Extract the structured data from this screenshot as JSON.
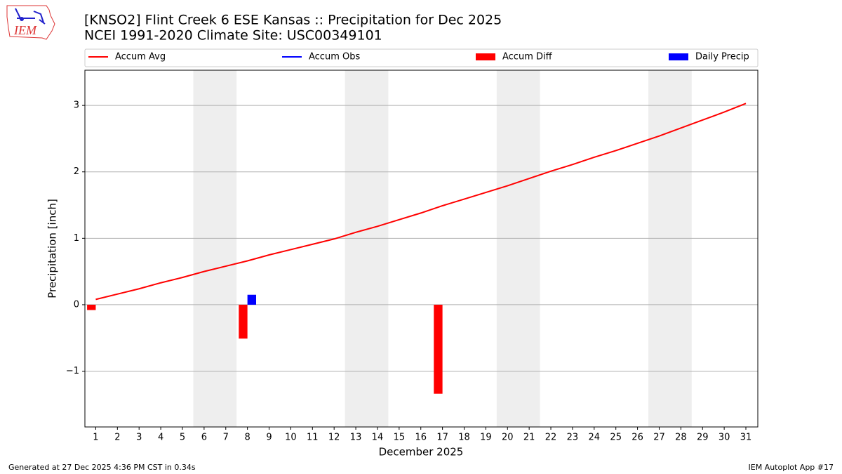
{
  "chart_data": {
    "type": "line_bar",
    "title": "[KNSO2] Flint Creek 6 ESE Kansas :: Precipitation for Dec 2025",
    "subtitle": "NCEI 1991-2020 Climate Site: USC00349101",
    "logo_text": "IEM",
    "x_label": "December 2025",
    "y_label": "Precipitation [inch]",
    "footer_left": "Generated at 27 Dec 2025 4:36 PM CST in 0.34s",
    "footer_right": "IEM Autoplot App #17",
    "x": [
      1,
      2,
      3,
      4,
      5,
      6,
      7,
      8,
      9,
      10,
      11,
      12,
      13,
      14,
      15,
      16,
      17,
      18,
      19,
      20,
      21,
      22,
      23,
      24,
      25,
      26,
      27,
      28,
      29,
      30,
      31
    ],
    "xlim": [
      0.5,
      31.55
    ],
    "xticks": [
      1,
      2,
      3,
      4,
      5,
      6,
      7,
      8,
      9,
      10,
      11,
      12,
      13,
      14,
      15,
      16,
      17,
      18,
      19,
      20,
      21,
      22,
      23,
      24,
      25,
      26,
      27,
      28,
      29,
      30,
      31
    ],
    "ylim": [
      -1.84,
      3.53
    ],
    "yticks": [
      {
        "value": -1,
        "label": "−1"
      },
      0,
      1,
      2,
      3
    ],
    "grid": true,
    "weekend_shading": [
      [
        5.5,
        7.5
      ],
      [
        12.5,
        14.5
      ],
      [
        19.5,
        21.5
      ],
      [
        26.5,
        28.5
      ]
    ],
    "series": [
      {
        "name": "Accum Avg",
        "color": "#ff0000",
        "kind": "line",
        "values": [
          0.08,
          0.16,
          0.24,
          0.33,
          0.41,
          0.5,
          0.58,
          0.66,
          0.75,
          0.83,
          0.91,
          0.99,
          1.09,
          1.18,
          1.28,
          1.38,
          1.49,
          1.59,
          1.69,
          1.79,
          1.9,
          2.01,
          2.11,
          2.22,
          2.32,
          2.43,
          2.54,
          2.66,
          2.78,
          2.9,
          3.03
        ]
      },
      {
        "name": "Accum Obs",
        "color": "#0000ff",
        "kind": "line",
        "values": [
          null,
          null,
          null,
          null,
          null,
          null,
          null,
          null,
          null,
          null,
          null,
          null,
          null,
          null,
          null,
          null,
          null,
          null,
          null,
          null,
          null,
          null,
          null,
          null,
          null,
          null,
          null,
          null,
          null,
          null,
          null
        ]
      },
      {
        "name": "Accum Diff",
        "color": "#ff0000",
        "kind": "bar",
        "offset": -0.2,
        "values": [
          -0.08,
          null,
          null,
          null,
          null,
          null,
          null,
          -0.51,
          null,
          null,
          null,
          null,
          null,
          null,
          null,
          null,
          -1.34,
          null,
          null,
          null,
          null,
          null,
          null,
          null,
          null,
          null,
          null,
          null,
          null,
          null,
          null
        ]
      },
      {
        "name": "Daily Precip",
        "color": "#0000ff",
        "kind": "bar",
        "offset": 0.2,
        "values": [
          null,
          null,
          null,
          null,
          null,
          null,
          null,
          0.15,
          null,
          null,
          null,
          null,
          null,
          null,
          null,
          null,
          null,
          null,
          null,
          null,
          null,
          null,
          null,
          null,
          null,
          null,
          null,
          null,
          null,
          null,
          null
        ]
      }
    ]
  }
}
